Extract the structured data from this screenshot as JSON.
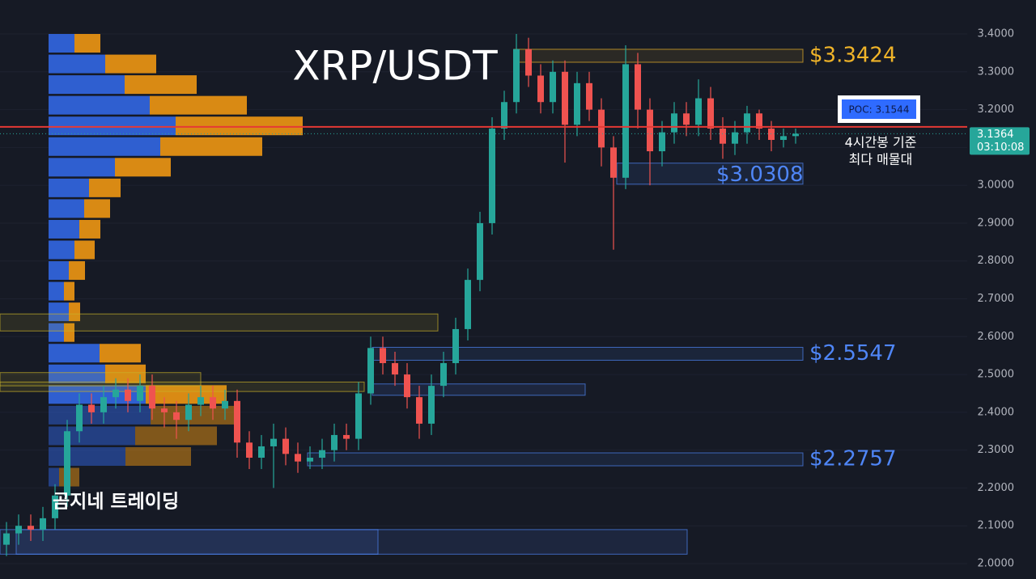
{
  "chart_data": {
    "type": "candlestick",
    "title": "XRP/USDT",
    "watermark": "곰지네 트레이딩",
    "annotation": [
      "4시간봉 기준",
      "최다 매물대"
    ],
    "ylim": [
      1.9594,
      3.4898
    ],
    "yticks": [
      {
        "value": 3.4,
        "label": "3.4000"
      },
      {
        "value": 3.3,
        "label": "3.3000"
      },
      {
        "value": 3.2,
        "label": "3.2000"
      },
      {
        "value": 3.1,
        "label": "3.1000"
      },
      {
        "value": 3.0,
        "label": "3.0000"
      },
      {
        "value": 2.9,
        "label": "2.9000"
      },
      {
        "value": 2.8,
        "label": "2.8000"
      },
      {
        "value": 2.7,
        "label": "2.7000"
      },
      {
        "value": 2.6,
        "label": "2.6000"
      },
      {
        "value": 2.5,
        "label": "2.5000"
      },
      {
        "value": 2.4,
        "label": "2.4000"
      },
      {
        "value": 2.3,
        "label": "2.3000"
      },
      {
        "value": 2.2,
        "label": "2.2000"
      },
      {
        "value": 2.1,
        "label": "2.1000"
      },
      {
        "value": 2.0,
        "label": "2.0000"
      }
    ],
    "grid": true,
    "up_color": "#26a69a",
    "down_color": "#ef5350",
    "open": [
      2.05,
      2.08,
      2.1,
      2.09,
      2.12,
      2.18,
      2.35,
      2.42,
      2.4,
      2.44,
      2.46,
      2.43,
      2.47,
      2.41,
      2.4,
      2.38,
      2.42,
      2.44,
      2.41,
      2.43,
      2.32,
      2.28,
      2.31,
      2.33,
      2.29,
      2.27,
      2.28,
      2.3,
      2.34,
      2.33,
      2.45,
      2.57,
      2.53,
      2.5,
      2.44,
      2.37,
      2.47,
      2.53,
      2.62,
      2.75,
      2.9,
      3.15,
      3.22,
      3.36,
      3.29,
      3.22,
      3.3,
      3.16,
      3.27,
      3.2,
      3.1,
      3.02,
      3.32,
      3.2,
      3.09,
      3.14,
      3.19,
      3.16,
      3.23,
      3.15,
      3.11,
      3.14,
      3.19,
      3.15,
      3.12,
      3.13
    ],
    "high": [
      2.11,
      2.13,
      2.13,
      2.15,
      2.21,
      2.38,
      2.45,
      2.45,
      2.47,
      2.49,
      2.49,
      2.5,
      2.5,
      2.44,
      2.43,
      2.45,
      2.47,
      2.47,
      2.46,
      2.46,
      2.35,
      2.34,
      2.37,
      2.36,
      2.32,
      2.31,
      2.33,
      2.37,
      2.37,
      2.48,
      2.6,
      2.6,
      2.56,
      2.53,
      2.47,
      2.5,
      2.56,
      2.65,
      2.78,
      2.93,
      3.18,
      3.25,
      3.4,
      3.39,
      3.32,
      3.33,
      3.33,
      3.3,
      3.3,
      3.23,
      3.13,
      3.37,
      3.35,
      3.23,
      3.17,
      3.22,
      3.22,
      3.28,
      3.26,
      3.18,
      3.17,
      3.21,
      3.2,
      3.17,
      3.15,
      3.15
    ],
    "low": [
      2.02,
      2.05,
      2.06,
      2.06,
      2.09,
      2.15,
      2.32,
      2.37,
      2.37,
      2.41,
      2.4,
      2.4,
      2.38,
      2.36,
      2.33,
      2.35,
      2.39,
      2.38,
      2.38,
      2.28,
      2.25,
      2.25,
      2.2,
      2.26,
      2.24,
      2.25,
      2.25,
      2.27,
      2.3,
      2.3,
      2.42,
      2.5,
      2.47,
      2.41,
      2.33,
      2.34,
      2.44,
      2.5,
      2.59,
      2.72,
      2.87,
      3.12,
      3.19,
      3.26,
      3.19,
      3.19,
      3.06,
      3.13,
      3.17,
      3.05,
      2.83,
      2.99,
      3.15,
      3.0,
      3.05,
      3.11,
      3.13,
      3.13,
      3.12,
      3.07,
      3.08,
      3.11,
      3.12,
      3.09,
      3.1,
      3.11
    ],
    "close": [
      2.08,
      2.1,
      2.09,
      2.12,
      2.18,
      2.35,
      2.42,
      2.4,
      2.44,
      2.46,
      2.43,
      2.47,
      2.41,
      2.4,
      2.38,
      2.42,
      2.44,
      2.41,
      2.43,
      2.32,
      2.28,
      2.31,
      2.33,
      2.29,
      2.27,
      2.28,
      2.3,
      2.34,
      2.33,
      2.45,
      2.57,
      2.53,
      2.5,
      2.44,
      2.37,
      2.47,
      2.53,
      2.62,
      2.75,
      2.9,
      3.15,
      3.22,
      3.36,
      3.29,
      3.22,
      3.3,
      3.16,
      3.27,
      3.2,
      3.1,
      3.02,
      3.32,
      3.2,
      3.09,
      3.14,
      3.19,
      3.16,
      3.23,
      3.15,
      3.11,
      3.14,
      3.19,
      3.15,
      3.12,
      3.13,
      3.1364
    ],
    "volume_profile": {
      "buy_color": "#2f5fd0",
      "sell_color": "#d98a14",
      "buy": [
        32,
        70,
        94,
        125,
        157,
        138,
        82,
        50,
        44,
        38,
        32,
        25,
        19,
        25,
        19,
        63,
        70,
        120,
        126,
        107,
        95,
        13
      ],
      "sell": [
        32,
        63,
        89,
        120,
        157,
        126,
        69,
        39,
        32,
        26,
        25,
        20,
        13,
        14,
        13,
        51,
        50,
        100,
        104,
        101,
        81,
        25
      ]
    },
    "levels": [
      {
        "label": "$3.3424",
        "value": 3.3424,
        "color": "#f0b429"
      },
      {
        "label": "$3.0308",
        "value": 3.0308,
        "color": "#4f86f7"
      },
      {
        "label": "$2.5547",
        "value": 2.5547,
        "color": "#4f86f7"
      },
      {
        "label": "$2.2757",
        "value": 2.2757,
        "color": "#4f86f7"
      }
    ],
    "zones": [
      {
        "top": 2.66,
        "bottom": 2.615,
        "color": "#c9b12a"
      },
      {
        "top": 2.505,
        "bottom": 2.47,
        "color": "#c9b12a"
      },
      {
        "top": 2.48,
        "bottom": 2.455,
        "color": "#c9b12a"
      },
      {
        "top": 2.475,
        "bottom": 2.445,
        "color": "#4f86f7"
      },
      {
        "top": 2.09,
        "bottom": 2.025,
        "color": "#4f86f7"
      },
      {
        "top": 2.09,
        "bottom": 2.025,
        "color": "#4f86f7"
      }
    ],
    "poc": {
      "label": "POC: 3.1544",
      "value": 3.1544,
      "color": "#e53935"
    },
    "last_price": {
      "label": "3.1364",
      "value": 3.1364,
      "countdown": "03:10:08",
      "color": "#26a69a"
    }
  }
}
